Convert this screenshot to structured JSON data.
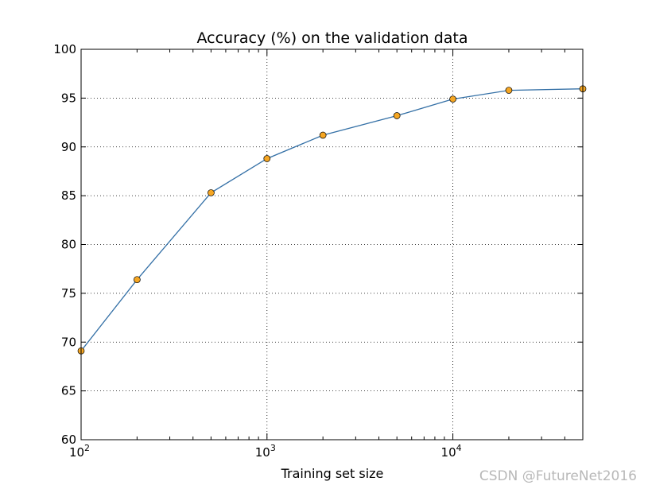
{
  "chart_data": {
    "type": "line",
    "title": "Accuracy (%) on the validation data",
    "xlabel": "Training set size",
    "ylabel": "",
    "x_scale": "log",
    "xlim": [
      100,
      50000
    ],
    "ylim": [
      60,
      100
    ],
    "y_ticks": [
      60,
      65,
      70,
      75,
      80,
      85,
      90,
      95,
      100
    ],
    "x_ticks": [
      {
        "value": 100,
        "base": "10",
        "exp": "2"
      },
      {
        "value": 1000,
        "base": "10",
        "exp": "3"
      },
      {
        "value": 10000,
        "base": "10",
        "exp": "4"
      }
    ],
    "grid": true,
    "series": [
      {
        "x": [
          100,
          200,
          500,
          1000,
          2000,
          5000,
          10000,
          20000,
          50000
        ],
        "y": [
          69.1,
          76.4,
          85.3,
          88.8,
          91.2,
          93.2,
          94.9,
          95.8,
          95.95
        ],
        "line_color": "#3470a6",
        "marker_color": "#f5a623"
      }
    ]
  },
  "watermark": "CSDN @FutureNet2016"
}
